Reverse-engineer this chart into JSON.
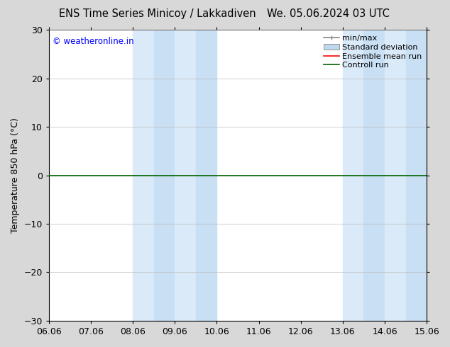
{
  "title_left": "ENS Time Series Minicoy / Lakkadiven",
  "title_right": "We. 05.06.2024 03 UTC",
  "ylabel": "Temperature 850 hPa (°C)",
  "ylim": [
    -30,
    30
  ],
  "yticks": [
    -30,
    -20,
    -10,
    0,
    10,
    20,
    30
  ],
  "xtick_labels": [
    "06.06",
    "07.06",
    "08.06",
    "09.06",
    "10.06",
    "11.06",
    "12.06",
    "13.06",
    "14.06",
    "15.06"
  ],
  "n_xticks": 10,
  "xlim": [
    0,
    9
  ],
  "shade_band1_start": 2.0,
  "shade_band1_mid": 2.5,
  "shade_band1_end": 3.0,
  "shade_band2_start": 7.0,
  "shade_band2_mid": 7.5,
  "shade_band2_end": 8.0,
  "shade_color_light": "#daeaf8",
  "shade_color_dark": "#c8dff4",
  "hline_color": "#006400",
  "hline_linewidth": 1.2,
  "ensemble_mean_color": "#ff0000",
  "control_run_color": "#006400",
  "copyright_text": "© weatheronline.in",
  "copyright_color": "#0000ff",
  "bg_color": "#d8d8d8",
  "plot_bg_color": "#ffffff",
  "font_size": 9,
  "title_font_size": 10.5,
  "legend_fontsize": 8,
  "minmax_color": "#888888",
  "stddev_face_color": "#c0d8ee",
  "stddev_edge_color": "#888888"
}
